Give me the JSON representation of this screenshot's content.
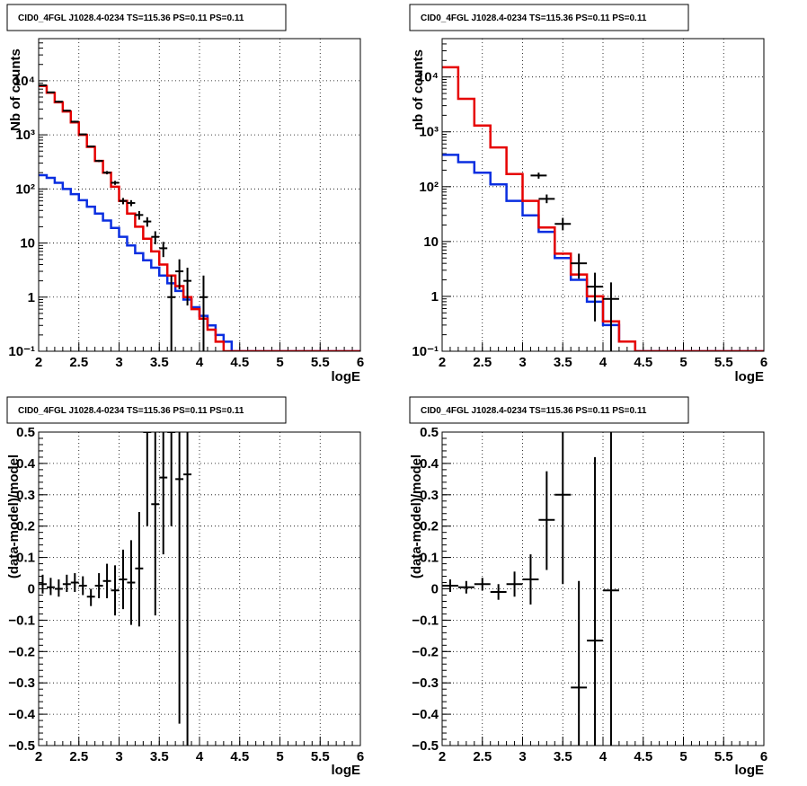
{
  "colors": {
    "data": "#000000",
    "model": "#e60000",
    "background": "#0a2ee0"
  },
  "chart_data": [
    {
      "type": "line",
      "title": "CID0_4FGL J1028.4-0234 TS=115.36 PS=0.11 PS=0.11",
      "xlabel": "logE",
      "ylabel": "Nb of counts",
      "xlim": [
        2,
        6
      ],
      "ylim": [
        0.1,
        60000
      ],
      "yscale": "log",
      "grid": true,
      "x_ticks": [
        "2",
        "2.5",
        "3",
        "3.5",
        "4",
        "4.5",
        "5",
        "5.5",
        "6"
      ],
      "y_ticks": [
        {
          "v": 0.1,
          "label": "10⁻¹"
        },
        {
          "v": 1,
          "label": "1"
        },
        {
          "v": 10,
          "label": "10"
        },
        {
          "v": 100,
          "label": "10²"
        },
        {
          "v": 1000,
          "label": "10³"
        },
        {
          "v": 10000,
          "label": "10⁴"
        }
      ],
      "series": [
        {
          "role": "model",
          "kind": "step",
          "bin_width": 0.1,
          "x_edges_start": 2.0,
          "values": [
            8000,
            6000,
            4000,
            2700,
            1700,
            1000,
            600,
            330,
            200,
            110,
            60,
            35,
            20,
            12,
            7,
            4,
            2.5,
            1.6,
            1.0,
            0.6,
            0.4,
            0.25,
            0.15,
            0.1,
            0.1,
            0.1,
            0.1,
            0.1,
            0.1,
            0.1,
            0.1,
            0.1,
            0.1,
            0.1,
            0.1,
            0.1,
            0.1,
            0.1,
            0.1,
            0.1
          ]
        },
        {
          "role": "background",
          "kind": "step",
          "bin_width": 0.1,
          "x_edges_start": 2.0,
          "values": [
            180,
            160,
            130,
            100,
            80,
            62,
            47,
            35,
            26,
            19,
            13,
            9,
            6.5,
            4.8,
            3.5,
            2.5,
            1.8,
            1.3,
            0.9,
            0.65,
            0.45,
            0.3,
            0.2,
            0.15,
            0.1,
            0.1,
            0.1,
            0.1,
            0.1,
            0.1,
            0.1,
            0.1,
            0.1,
            0.1,
            0.1,
            0.1,
            0.1,
            0.1,
            0.1,
            0.1
          ]
        },
        {
          "role": "data",
          "kind": "points",
          "xerr": 0.05,
          "x": [
            2.05,
            2.15,
            2.25,
            2.35,
            2.45,
            2.55,
            2.65,
            2.75,
            2.85,
            2.95,
            3.05,
            3.15,
            3.25,
            3.35,
            3.45,
            3.55,
            3.65,
            3.75,
            3.85,
            4.05
          ],
          "y": [
            8200,
            6100,
            4100,
            2800,
            1750,
            1020,
            610,
            330,
            200,
            130,
            60,
            55,
            33,
            25,
            13,
            8,
            1,
            3,
            2,
            1
          ],
          "ylo": [
            8000,
            5950,
            3950,
            2700,
            1680,
            990,
            590,
            315,
            186,
            119,
            52,
            48,
            27,
            20,
            9.5,
            5.5,
            0.1,
            1.4,
            0.7,
            0.1
          ],
          "yhi": [
            8400,
            6250,
            4250,
            2900,
            1820,
            1050,
            630,
            345,
            214,
            141,
            68,
            62,
            39,
            30,
            16.5,
            10.5,
            2.5,
            5,
            3.5,
            2.5
          ]
        }
      ]
    },
    {
      "type": "line",
      "title": "CID0_4FGL J1028.4-0234 TS=115.36 PS=0.11 PS=0.11",
      "xlabel": "logE",
      "ylabel": "nb of counts",
      "xlim": [
        2,
        6
      ],
      "ylim": [
        0.1,
        50000
      ],
      "yscale": "log",
      "grid": true,
      "x_ticks": [
        "2",
        "2.5",
        "3",
        "3.5",
        "4",
        "4.5",
        "5",
        "5.5",
        "6"
      ],
      "y_ticks": [
        {
          "v": 0.1,
          "label": "10⁻¹"
        },
        {
          "v": 1,
          "label": "1"
        },
        {
          "v": 10,
          "label": "10"
        },
        {
          "v": 100,
          "label": "10²"
        },
        {
          "v": 1000,
          "label": "10³"
        },
        {
          "v": 10000,
          "label": "10⁴"
        }
      ],
      "series": [
        {
          "role": "model",
          "kind": "step",
          "bin_width": 0.2,
          "x_edges_start": 2.0,
          "values": [
            15000,
            4000,
            1300,
            520,
            170,
            55,
            18,
            6,
            2.5,
            1.0,
            0.35,
            0.15,
            0.1,
            0.1,
            0.1,
            0.1,
            0.1,
            0.1,
            0.1,
            0.1
          ]
        },
        {
          "role": "background",
          "kind": "step",
          "bin_width": 0.2,
          "x_edges_start": 2.0,
          "values": [
            380,
            280,
            180,
            110,
            55,
            30,
            15,
            5,
            2,
            0.8,
            0.3,
            0.15,
            0.1,
            0.1,
            0.1,
            0.1,
            0.1,
            0.1,
            0.1,
            0.1
          ]
        },
        {
          "role": "data",
          "kind": "points",
          "xerr": 0.1,
          "x": [
            3.2,
            3.3,
            3.5,
            3.7,
            3.9,
            4.1
          ],
          "y": [
            160,
            60,
            21,
            4,
            1.5,
            0.9
          ],
          "ylo": [
            140,
            50,
            16,
            2.1,
            0.35,
            0.1
          ],
          "yhi": [
            180,
            72,
            27,
            6,
            2.7,
            1.8
          ]
        }
      ]
    },
    {
      "type": "scatter",
      "title": "CID0_4FGL J1028.4-0234 TS=115.36 PS=0.11 PS=0.11",
      "xlabel": "logE",
      "ylabel": "(data-model)/model",
      "xlim": [
        2,
        6
      ],
      "ylim": [
        -0.5,
        0.5
      ],
      "grid": true,
      "x_ticks": [
        "2",
        "2.5",
        "3",
        "3.5",
        "4",
        "4.5",
        "5",
        "5.5",
        "6"
      ],
      "y_ticks": [
        "−0.5",
        "−0.4",
        "−0.3",
        "−0.2",
        "−0.1",
        "0",
        "0.1",
        "0.2",
        "0.3",
        "0.4",
        "0.5"
      ],
      "series": [
        {
          "role": "data",
          "kind": "points",
          "xerr": 0.05,
          "x": [
            2.05,
            2.15,
            2.25,
            2.35,
            2.45,
            2.55,
            2.65,
            2.75,
            2.85,
            2.95,
            3.05,
            3.15,
            3.25,
            3.35,
            3.45,
            3.55,
            3.65,
            3.75,
            3.85
          ],
          "y": [
            0.015,
            0.005,
            0.0,
            0.015,
            0.02,
            0.01,
            -0.025,
            0.01,
            0.025,
            -0.005,
            0.03,
            0.02,
            0.065,
            0.5,
            0.27,
            0.355,
            0.5,
            0.35,
            0.365
          ],
          "ylo": [
            -0.015,
            -0.02,
            -0.025,
            -0.01,
            -0.01,
            -0.02,
            -0.055,
            -0.03,
            -0.03,
            -0.085,
            -0.065,
            -0.115,
            -0.12,
            0.2,
            -0.085,
            0.11,
            0.2,
            -0.43,
            -0.5
          ],
          "yhi": [
            0.045,
            0.035,
            0.03,
            0.045,
            0.05,
            0.04,
            0.0,
            0.05,
            0.08,
            0.075,
            0.125,
            0.155,
            0.245,
            0.5,
            0.5,
            0.5,
            0.5,
            0.5,
            0.5
          ]
        }
      ]
    },
    {
      "type": "scatter",
      "title": "CID0_4FGL J1028.4-0234 TS=115.36 PS=0.11 PS=0.11",
      "xlabel": "logE",
      "ylabel": "(data-model)/model",
      "xlim": [
        2,
        6
      ],
      "ylim": [
        -0.5,
        0.5
      ],
      "grid": true,
      "x_ticks": [
        "2",
        "2.5",
        "3",
        "3.5",
        "4",
        "4.5",
        "5",
        "5.5",
        "6"
      ],
      "y_ticks": [
        "−0.5",
        "−0.4",
        "−0.3",
        "−0.2",
        "−0.1",
        "0",
        "0.1",
        "0.2",
        "0.3",
        "0.4",
        "0.5"
      ],
      "series": [
        {
          "role": "data",
          "kind": "points",
          "xerr": 0.1,
          "x": [
            2.1,
            2.3,
            2.5,
            2.7,
            2.9,
            3.1,
            3.3,
            3.5,
            3.7,
            3.9,
            4.1
          ],
          "y": [
            0.01,
            0.005,
            0.015,
            -0.01,
            0.015,
            0.03,
            0.22,
            0.3,
            -0.315,
            -0.165,
            -0.005
          ],
          "ylo": [
            -0.01,
            -0.015,
            -0.005,
            -0.035,
            -0.025,
            -0.05,
            0.06,
            0.015,
            -0.5,
            -0.5,
            -0.5
          ],
          "yhi": [
            0.03,
            0.025,
            0.035,
            0.015,
            0.055,
            0.11,
            0.375,
            0.5,
            0.025,
            0.42,
            0.5
          ]
        }
      ]
    }
  ]
}
